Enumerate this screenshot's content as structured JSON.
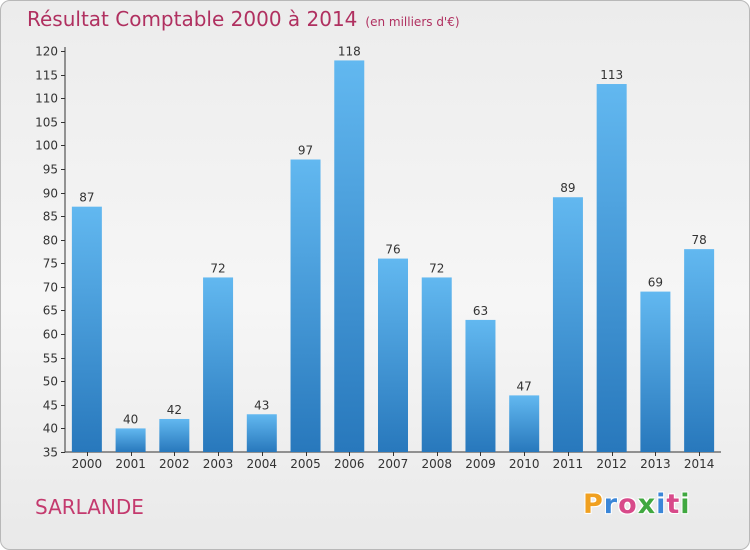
{
  "title": "Résultat Comptable 2000 à 2014",
  "subtitle": "(en milliers d'€)",
  "commune": "SARLANDE",
  "logo": {
    "letters": [
      "P",
      "r",
      "o",
      "x",
      "i",
      "t",
      "i"
    ],
    "colors": [
      "#f0a020",
      "#3a86d8",
      "#d84a8a",
      "#40a840",
      "#3a86d8",
      "#d84a8a",
      "#40a840"
    ]
  },
  "colors": {
    "bar": "#4aa3e6",
    "bar_light": "#62b8f0",
    "bar_dark": "#2878bc",
    "title": "#b03060"
  },
  "chart_data": {
    "type": "bar",
    "categories": [
      "2000",
      "2001",
      "2002",
      "2003",
      "2004",
      "2005",
      "2006",
      "2007",
      "2008",
      "2009",
      "2010",
      "2011",
      "2012",
      "2013",
      "2014"
    ],
    "values": [
      87,
      40,
      42,
      72,
      43,
      97,
      118,
      76,
      72,
      63,
      47,
      89,
      113,
      69,
      78
    ],
    "title": "Résultat Comptable 2000 à 2014",
    "subtitle": "(en milliers d'€)",
    "ylim": [
      35,
      120
    ],
    "yticks": [
      35,
      40,
      45,
      50,
      55,
      60,
      65,
      70,
      75,
      80,
      85,
      90,
      95,
      100,
      105,
      110,
      115,
      120
    ],
    "grid": false,
    "data_labels": true
  }
}
